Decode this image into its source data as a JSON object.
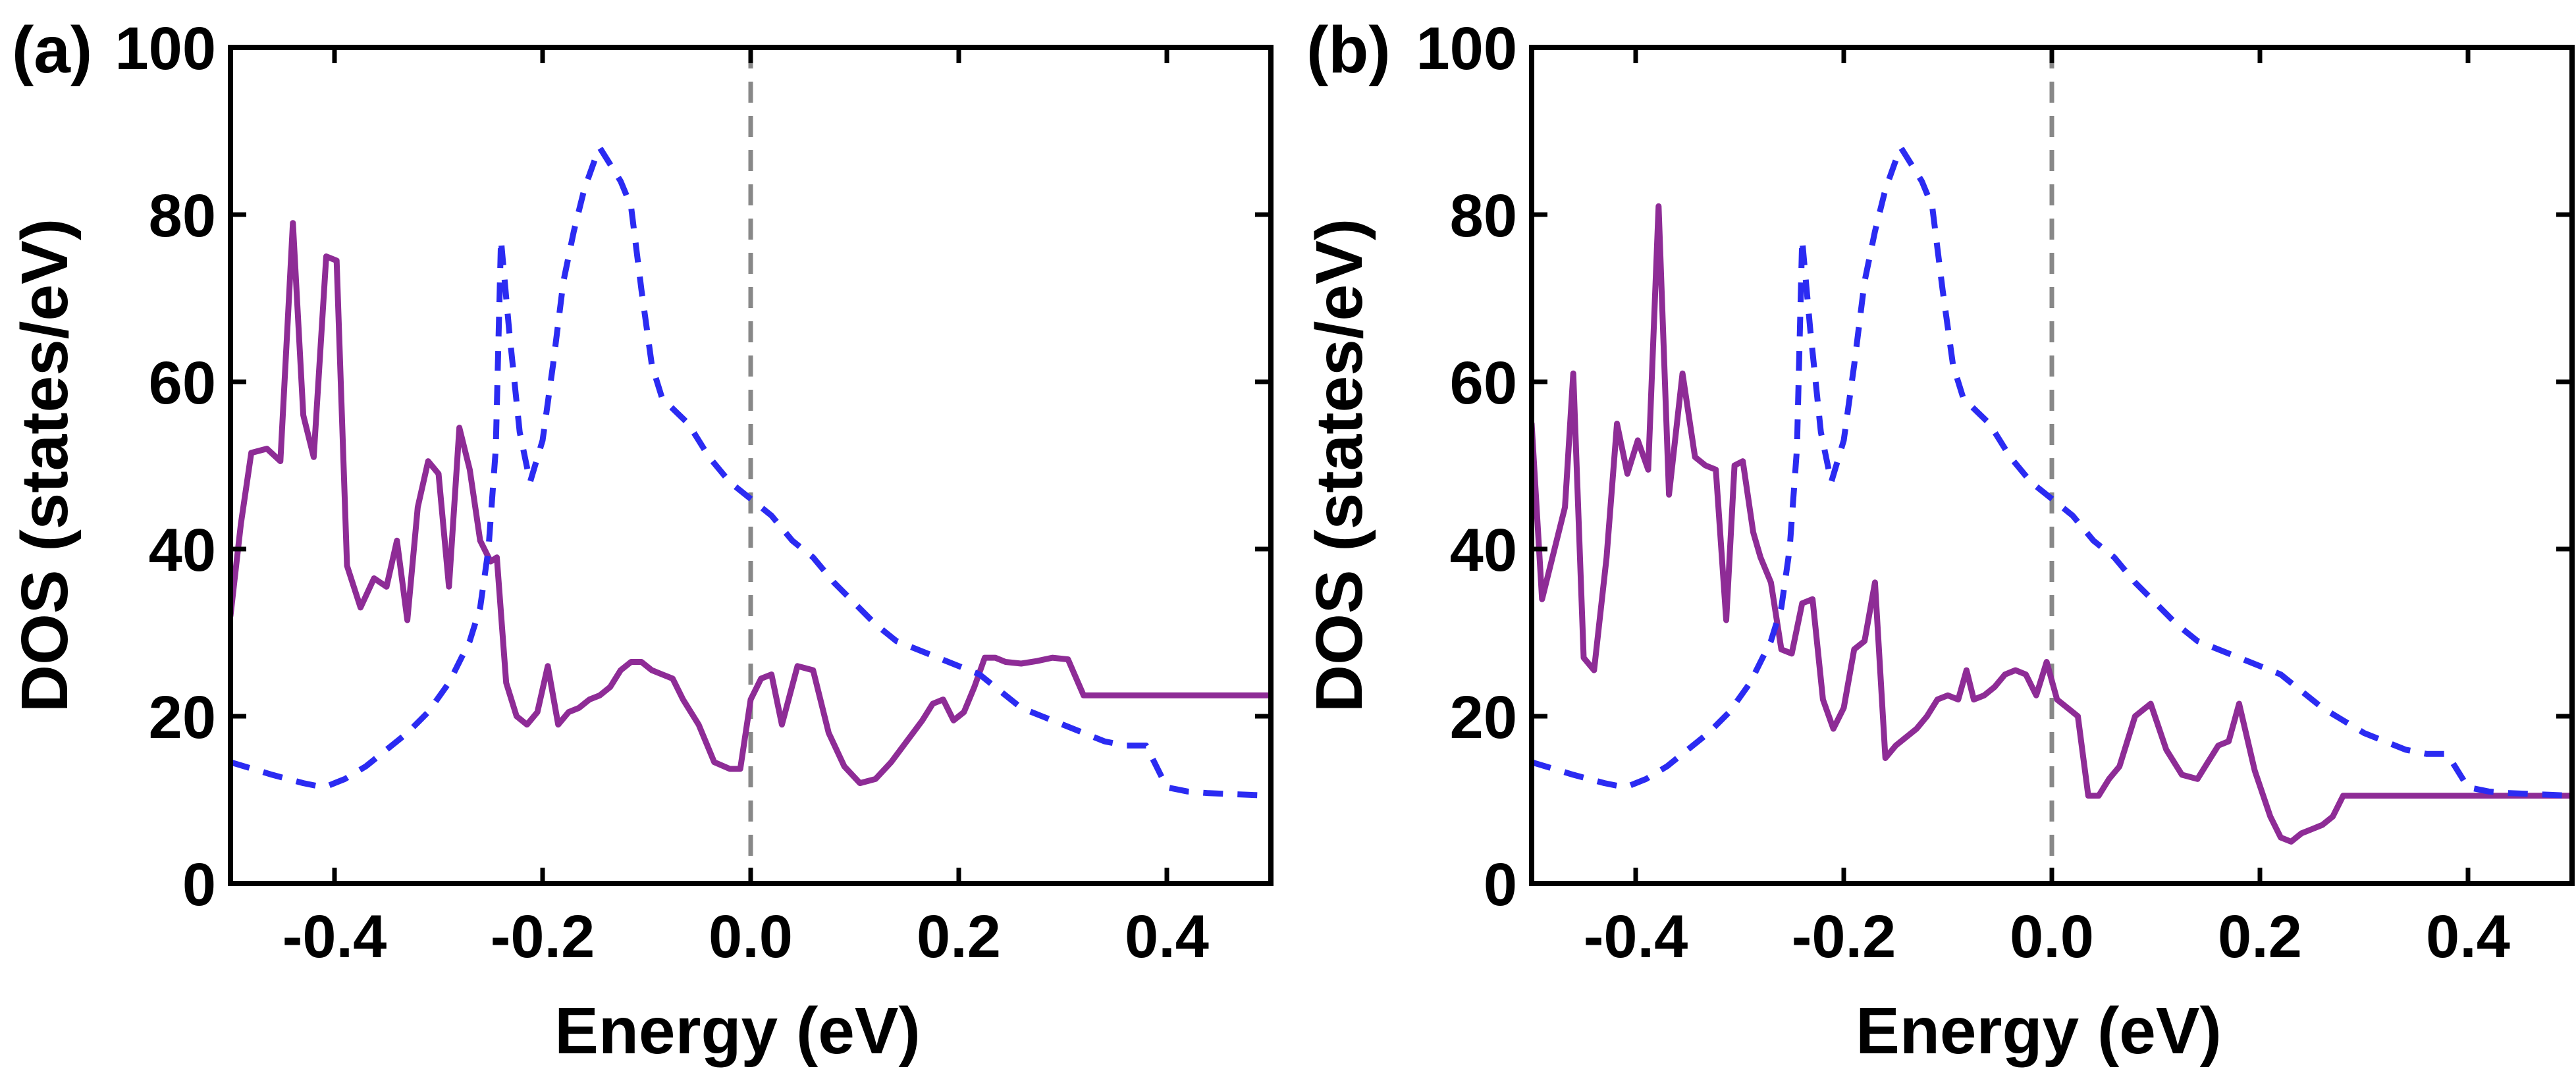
{
  "figure": {
    "panels_count": 2
  },
  "chart_data": [
    {
      "type": "line",
      "panel_label": "(a)",
      "xlabel": "Energy (eV)",
      "ylabel": "DOS (states/eV)",
      "xlim": [
        -0.5,
        0.5
      ],
      "ylim": [
        0,
        100
      ],
      "xticks": [
        -0.4,
        -0.2,
        0.0,
        0.2,
        0.4
      ],
      "xtick_labels": [
        "-0.4",
        "-0.2",
        "0.0",
        "0.2",
        "0.4"
      ],
      "yticks": [
        0,
        20,
        40,
        60,
        80,
        100
      ],
      "ytick_labels": [
        "0",
        "20",
        "40",
        "60",
        "80",
        "100"
      ],
      "vline": {
        "x": 0.0,
        "color": "#888888",
        "style": "dashed"
      },
      "series": [
        {
          "name": "purple solid",
          "color": "#8e2c96",
          "style": "solid",
          "x": [
            -0.5,
            -0.49,
            -0.48,
            -0.465,
            -0.452,
            -0.44,
            -0.43,
            -0.42,
            -0.408,
            -0.398,
            -0.388,
            -0.375,
            -0.362,
            -0.35,
            -0.34,
            -0.33,
            -0.32,
            -0.31,
            -0.3,
            -0.29,
            -0.28,
            -0.27,
            -0.26,
            -0.25,
            -0.244,
            -0.235,
            -0.225,
            -0.215,
            -0.205,
            -0.195,
            -0.185,
            -0.175,
            -0.165,
            -0.155,
            -0.145,
            -0.135,
            -0.125,
            -0.115,
            -0.105,
            -0.095,
            -0.085,
            -0.075,
            -0.065,
            -0.05,
            -0.035,
            -0.02,
            -0.01,
            0.0,
            0.01,
            0.02,
            0.03,
            0.045,
            0.06,
            0.075,
            0.09,
            0.105,
            0.12,
            0.135,
            0.15,
            0.165,
            0.175,
            0.185,
            0.195,
            0.205,
            0.215,
            0.225,
            0.235,
            0.245,
            0.26,
            0.275,
            0.29,
            0.305,
            0.32,
            0.335,
            0.345,
            0.355,
            0.365,
            0.375,
            0.385,
            0.395,
            0.41,
            0.425,
            0.44,
            0.455,
            0.47,
            0.49,
            0.5
          ],
          "y": [
            32,
            43,
            51.5,
            52,
            50.5,
            79,
            56,
            51,
            75,
            74.5,
            38,
            33,
            36.5,
            35.5,
            41,
            31.5,
            45,
            50.5,
            49,
            35.5,
            54.5,
            49.5,
            41,
            38.5,
            39,
            24,
            20,
            19,
            20.5,
            26,
            19,
            20.5,
            21,
            22,
            22.5,
            23.5,
            25.5,
            26.5,
            26.5,
            25.5,
            25,
            24.5,
            22,
            19,
            14.5,
            13.7,
            13.7,
            22,
            24.5,
            25,
            19,
            26,
            25.5,
            18,
            14,
            12,
            12.5,
            14.5,
            17,
            19.5,
            21.5,
            22,
            19.5,
            20.5,
            23.5,
            27,
            27,
            26.5,
            26.3,
            26.6,
            27,
            26.8,
            22.5,
            22.5,
            22.5,
            22.5,
            22.5,
            22.5,
            22.5,
            22.5,
            22.5,
            22.5,
            22.5,
            22.5,
            22.5,
            22.5,
            22.5
          ]
        },
        {
          "name": "blue dashed",
          "color": "#2b2bf2",
          "style": "dashed",
          "x": [
            -0.5,
            -0.46,
            -0.43,
            -0.41,
            -0.39,
            -0.37,
            -0.35,
            -0.33,
            -0.31,
            -0.29,
            -0.27,
            -0.26,
            -0.252,
            -0.245,
            -0.24,
            -0.232,
            -0.222,
            -0.212,
            -0.2,
            -0.19,
            -0.18,
            -0.17,
            -0.16,
            -0.15,
            -0.145,
            -0.135,
            -0.125,
            -0.115,
            -0.105,
            -0.095,
            -0.085,
            -0.06,
            -0.04,
            -0.02,
            0.0,
            0.02,
            0.04,
            0.06,
            0.08,
            0.1,
            0.12,
            0.14,
            0.16,
            0.18,
            0.2,
            0.22,
            0.24,
            0.26,
            0.28,
            0.3,
            0.32,
            0.34,
            0.36,
            0.38,
            0.4,
            0.42,
            0.44,
            0.46,
            0.48,
            0.5
          ],
          "y": [
            14.5,
            13,
            12,
            11.5,
            12.5,
            14,
            16,
            18,
            20.5,
            24,
            29,
            33,
            40,
            52,
            77,
            66,
            54,
            48,
            53,
            62,
            72,
            78,
            83,
            86.5,
            88,
            86,
            84,
            81,
            71,
            62,
            58,
            55,
            51,
            48,
            46,
            44,
            41,
            39,
            36,
            33.5,
            31,
            29,
            28,
            27,
            26,
            25,
            23,
            21,
            20,
            19,
            18,
            17,
            16.5,
            16.5,
            11.5,
            11,
            10.8,
            10.7,
            10.6,
            10.5
          ]
        }
      ]
    },
    {
      "type": "line",
      "panel_label": "(b)",
      "xlabel": "Energy (eV)",
      "ylabel": "DOS (states/eV)",
      "xlim": [
        -0.5,
        0.5
      ],
      "ylim": [
        0,
        100
      ],
      "xticks": [
        -0.4,
        -0.2,
        0.0,
        0.2,
        0.4
      ],
      "xtick_labels": [
        "-0.4",
        "-0.2",
        "0.0",
        "0.2",
        "0.4"
      ],
      "yticks": [
        0,
        20,
        40,
        60,
        80,
        100
      ],
      "ytick_labels": [
        "0",
        "20",
        "40",
        "60",
        "80",
        "100"
      ],
      "vline": {
        "x": 0.0,
        "color": "#888888",
        "style": "dashed"
      },
      "series": [
        {
          "name": "purple solid",
          "color": "#8e2c96",
          "style": "solid",
          "x": [
            -0.5,
            -0.49,
            -0.48,
            -0.468,
            -0.46,
            -0.45,
            -0.44,
            -0.428,
            -0.418,
            -0.408,
            -0.398,
            -0.388,
            -0.378,
            -0.368,
            -0.355,
            -0.343,
            -0.333,
            -0.323,
            -0.313,
            -0.305,
            -0.297,
            -0.287,
            -0.28,
            -0.27,
            -0.26,
            -0.25,
            -0.24,
            -0.23,
            -0.22,
            -0.21,
            -0.2,
            -0.19,
            -0.18,
            -0.17,
            -0.16,
            -0.15,
            -0.14,
            -0.13,
            -0.12,
            -0.11,
            -0.1,
            -0.09,
            -0.082,
            -0.075,
            -0.065,
            -0.055,
            -0.045,
            -0.035,
            -0.025,
            -0.015,
            -0.005,
            0.005,
            0.015,
            0.025,
            0.035,
            0.045,
            0.055,
            0.065,
            0.08,
            0.095,
            0.11,
            0.125,
            0.14,
            0.15,
            0.16,
            0.17,
            0.18,
            0.195,
            0.21,
            0.22,
            0.23,
            0.24,
            0.25,
            0.26,
            0.27,
            0.28,
            0.29,
            0.3,
            0.31,
            0.32,
            0.33,
            0.34,
            0.35,
            0.36,
            0.375,
            0.385,
            0.395,
            0.405,
            0.415,
            0.425,
            0.44,
            0.46,
            0.48,
            0.5
          ],
          "y": [
            55,
            34,
            39,
            45,
            61,
            27,
            25.5,
            39,
            55,
            49,
            53,
            49.5,
            81,
            46.5,
            61,
            51,
            50,
            49.5,
            31.5,
            50,
            50.5,
            42,
            39,
            36,
            28,
            27.5,
            33.5,
            34,
            22,
            18.5,
            21,
            28,
            29,
            36,
            15,
            16.5,
            17.5,
            18.5,
            20,
            22,
            22.5,
            22,
            25.5,
            22,
            22.5,
            23.5,
            25,
            25.5,
            25,
            22.5,
            26.5,
            22,
            21,
            20,
            10.5,
            10.5,
            12.5,
            14,
            20,
            21.5,
            16,
            13,
            12.5,
            14.5,
            16.5,
            17,
            21.5,
            13.5,
            8,
            5.5,
            5,
            6,
            6.5,
            7,
            8,
            10.5,
            10.5,
            10.5,
            10.5,
            10.5,
            10.5,
            10.5,
            10.5,
            10.5,
            10.5,
            10.5,
            10.5,
            10.5,
            10.5,
            10.5,
            10.5,
            10.5,
            10.5,
            10.5
          ]
        },
        {
          "name": "blue dashed",
          "color": "#2b2bf2",
          "style": "dashed",
          "x": [
            -0.5,
            -0.46,
            -0.43,
            -0.41,
            -0.39,
            -0.37,
            -0.35,
            -0.33,
            -0.31,
            -0.29,
            -0.27,
            -0.26,
            -0.252,
            -0.245,
            -0.24,
            -0.232,
            -0.222,
            -0.212,
            -0.2,
            -0.19,
            -0.18,
            -0.17,
            -0.16,
            -0.15,
            -0.145,
            -0.135,
            -0.125,
            -0.115,
            -0.105,
            -0.095,
            -0.085,
            -0.06,
            -0.04,
            -0.02,
            0.0,
            0.02,
            0.04,
            0.06,
            0.08,
            0.1,
            0.12,
            0.14,
            0.16,
            0.18,
            0.2,
            0.22,
            0.24,
            0.26,
            0.28,
            0.3,
            0.32,
            0.34,
            0.36,
            0.38,
            0.4,
            0.42,
            0.44,
            0.46,
            0.48,
            0.5
          ],
          "y": [
            14.5,
            13,
            12,
            11.5,
            12.5,
            14,
            16,
            18,
            20.5,
            24,
            29,
            33,
            40,
            52,
            77,
            66,
            54,
            48,
            53,
            62,
            72,
            78,
            83,
            86.5,
            88,
            86,
            84,
            81,
            71,
            62,
            58,
            55,
            51,
            48,
            46,
            44,
            41,
            39,
            36,
            33.5,
            31,
            29,
            28,
            27,
            26,
            25,
            23,
            21,
            19.5,
            18,
            17,
            16,
            15.5,
            15.5,
            11.5,
            11,
            10.8,
            10.7,
            10.6,
            10.5
          ]
        }
      ]
    }
  ]
}
